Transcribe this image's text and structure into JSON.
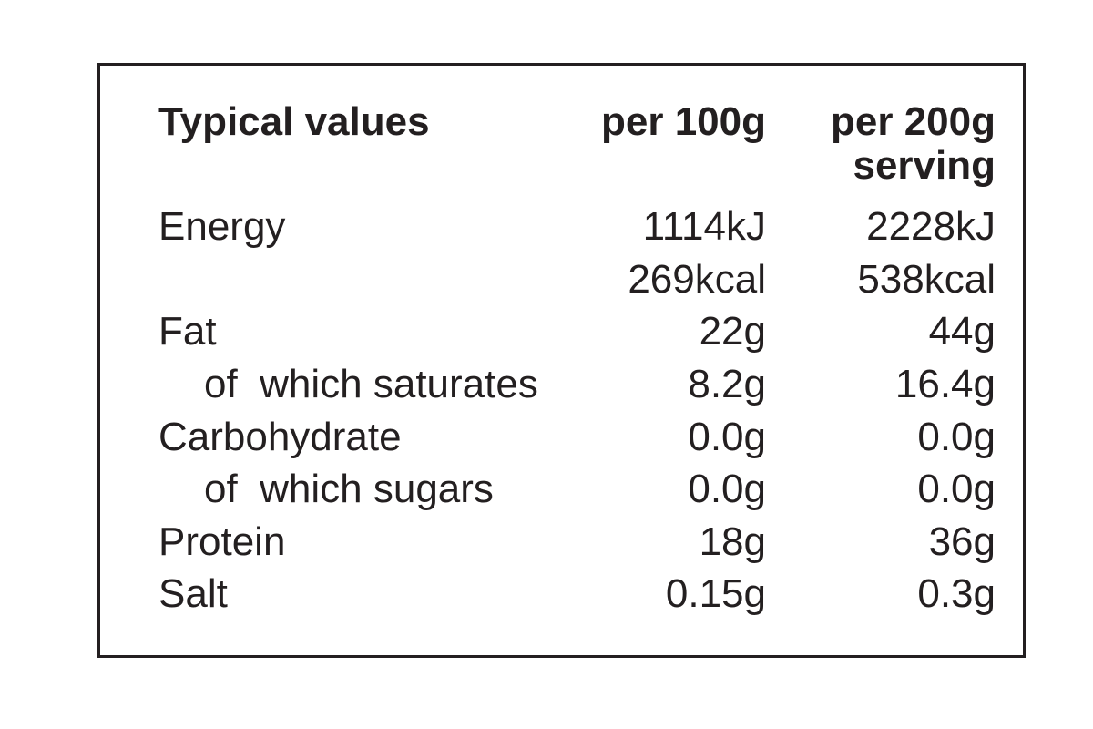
{
  "header": {
    "typical": "Typical values",
    "per100": "per 100g",
    "per200_line1": "per 200g",
    "per200_line2": "serving"
  },
  "rows": [
    {
      "label": "Energy",
      "per100": "1114kJ",
      "per200": "2228kJ"
    },
    {
      "label": "",
      "per100": "269kcal",
      "per200": "538kcal"
    },
    {
      "label": "Fat",
      "per100": "22g",
      "per200": "44g"
    },
    {
      "label": "of  which saturates",
      "per100": "8.2g",
      "per200": "16.4g"
    },
    {
      "label": "Carbohydrate",
      "per100": "0.0g",
      "per200": "0.0g"
    },
    {
      "label": "of  which sugars",
      "per100": "0.0g",
      "per200": "0.0g"
    },
    {
      "label": "Protein",
      "per100": "18g",
      "per200": "36g"
    },
    {
      "label": "Salt",
      "per100": "0.15g",
      "per200": "0.3g"
    }
  ],
  "colors": {
    "text": "#231f20",
    "border": "#231f20",
    "background": "#ffffff"
  }
}
